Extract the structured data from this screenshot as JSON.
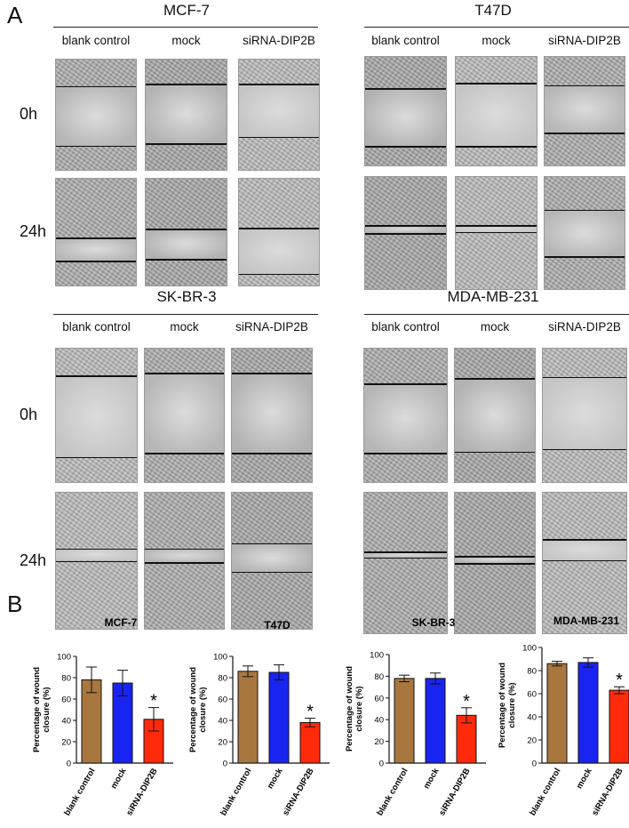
{
  "panel_a_label": "A",
  "panel_b_label": "B",
  "col_labels": [
    "blank control",
    "mock",
    "siRNA-DIP2B"
  ],
  "row_labels": [
    "0h",
    "24h"
  ],
  "cell_lines": [
    "MCF-7",
    "T47D",
    "SK-BR-3",
    "MDA-MB-231"
  ],
  "chart_data": [
    {
      "type": "bar",
      "title": "MCF-7",
      "categories": [
        "blank control",
        "mock",
        "siRNA-DIP2B"
      ],
      "values": [
        78,
        75,
        41
      ],
      "errors": [
        12,
        12,
        11
      ],
      "ylabel": "Percentage of wound closure (%)",
      "ylim": [
        0,
        100
      ],
      "yticks": [
        "0",
        "20",
        "40",
        "60",
        "80",
        "100"
      ],
      "significance": [
        "",
        "",
        "*"
      ],
      "colors": [
        "#a8773f",
        "#1a24f0",
        "#ff2a0a"
      ]
    },
    {
      "type": "bar",
      "title": "T47D",
      "categories": [
        "blank control",
        "mock",
        "siRNA-DIP2B"
      ],
      "values": [
        86,
        85,
        38
      ],
      "errors": [
        5,
        7,
        4
      ],
      "ylabel": "Percentage of wound closure (%)",
      "ylim": [
        0,
        100
      ],
      "yticks": [
        "0",
        "20",
        "40",
        "60",
        "80",
        "100"
      ],
      "significance": [
        "",
        "",
        "*"
      ],
      "colors": [
        "#a8773f",
        "#1a24f0",
        "#ff2a0a"
      ]
    },
    {
      "type": "bar",
      "title": "SK-BR-3",
      "categories": [
        "blank control",
        "mock",
        "siRNA-DIP2B"
      ],
      "values": [
        78,
        78,
        44
      ],
      "errors": [
        3,
        5,
        7
      ],
      "ylabel": "Percentage of wound closure (%)",
      "ylim": [
        0,
        100
      ],
      "yticks": [
        "0",
        "20",
        "40",
        "60",
        "80",
        "100"
      ],
      "significance": [
        "",
        "",
        "*"
      ],
      "colors": [
        "#a8773f",
        "#1a24f0",
        "#ff2a0a"
      ]
    },
    {
      "type": "bar",
      "title": "MDA-MB-231",
      "categories": [
        "blank control",
        "mock",
        "siRNA-DIP2B"
      ],
      "values": [
        86,
        87,
        63
      ],
      "errors": [
        2,
        4,
        3
      ],
      "ylabel": "Percentage of wound closure (%)",
      "ylim": [
        0,
        100
      ],
      "yticks": [
        "0",
        "20",
        "40",
        "60",
        "80",
        "100"
      ],
      "significance": [
        "",
        "",
        "*"
      ],
      "colors": [
        "#a8773f",
        "#1a24f0",
        "#ff2a0a"
      ]
    }
  ]
}
